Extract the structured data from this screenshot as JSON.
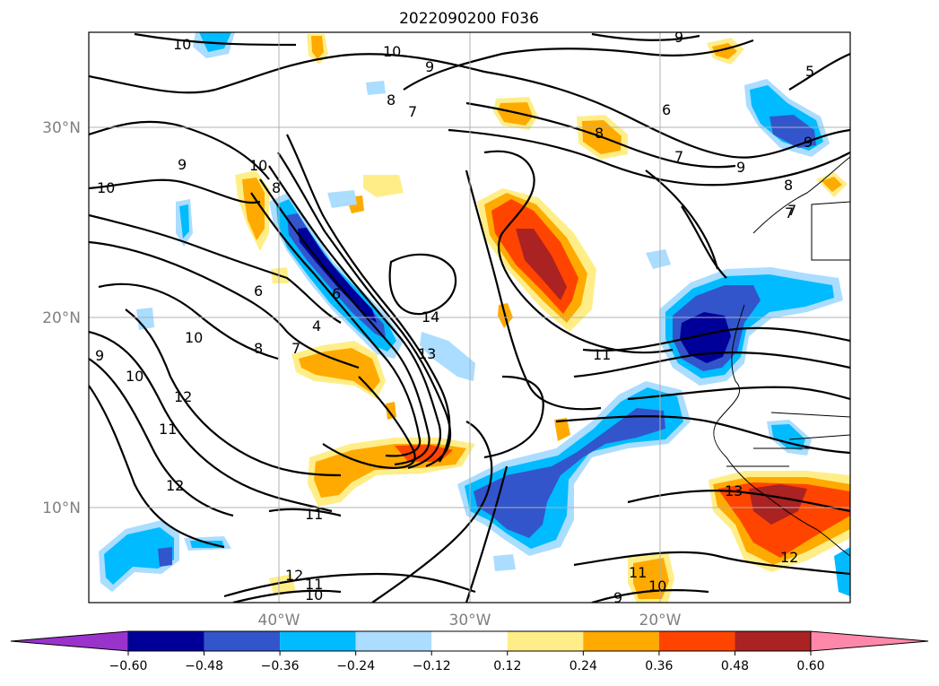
{
  "title": "2022090200 F036",
  "map": {
    "lat_labels": [
      "30°N",
      "20°N",
      "10°N"
    ],
    "lon_labels": [
      "40°W",
      "30°W",
      "20°W"
    ],
    "contour_labels": [
      "10",
      "10",
      "9",
      "9",
      "8",
      "7",
      "6",
      "7",
      "9",
      "8",
      "9",
      "5",
      "10",
      "9",
      "10",
      "7",
      "6",
      "8",
      "6",
      "4",
      "7",
      "8",
      "10",
      "9",
      "10",
      "12",
      "11",
      "12",
      "14",
      "13",
      "11",
      "13",
      "12",
      "11",
      "12",
      "11",
      "10",
      "11",
      "10",
      "9",
      "7",
      "8"
    ]
  },
  "colorbar": {
    "ticks": [
      "−0.60",
      "−0.48",
      "−0.36",
      "−0.24",
      "−0.12",
      "0.12",
      "0.24",
      "0.36",
      "0.48",
      "0.60"
    ],
    "colors": [
      "#9933cc",
      "#000099",
      "#3355cc",
      "#00bbff",
      "#aaddff",
      "#ffffff",
      "#ffee88",
      "#ffaa00",
      "#ff4400",
      "#aa2222",
      "#ff88aa"
    ]
  }
}
